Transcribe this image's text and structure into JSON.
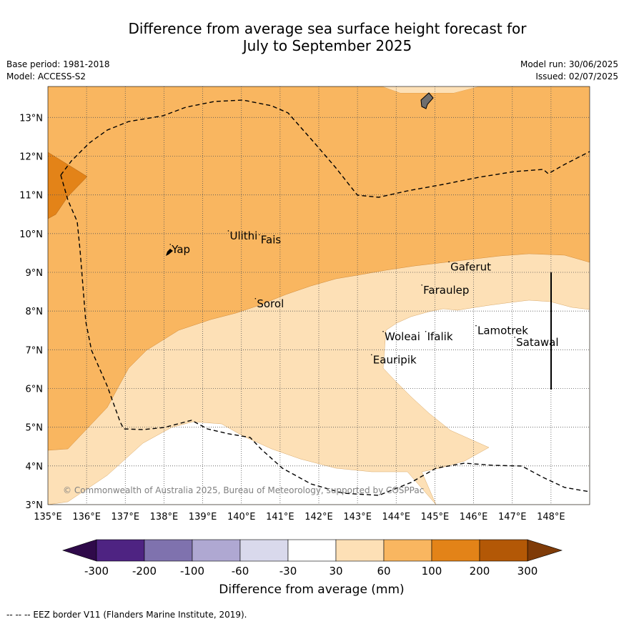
{
  "title": {
    "line1": "Difference from average sea surface height forecast for",
    "line2": "July to September 2025"
  },
  "meta_left": {
    "base_period": "Base period: 1981-2018",
    "model": "Model: ACCESS-S2"
  },
  "meta_right": {
    "model_run": "Model run: 30/06/2025",
    "issued": "Issued: 02/07/2025"
  },
  "map": {
    "lon_range": [
      135,
      149
    ],
    "lat_range": [
      3,
      13.8
    ],
    "lon_ticks": [
      "135°E",
      "136°E",
      "137°E",
      "138°E",
      "139°E",
      "140°E",
      "141°E",
      "142°E",
      "143°E",
      "144°E",
      "145°E",
      "146°E",
      "147°E",
      "148°E"
    ],
    "lat_ticks": [
      "3°N",
      "4°N",
      "5°N",
      "6°N",
      "7°N",
      "8°N",
      "9°N",
      "10°N",
      "11°N",
      "12°N",
      "13°N"
    ],
    "copyright": "© Commonwealth of Australia 2025, Bureau of Meteorology, supported by COSPPac",
    "places": [
      {
        "name": "Yap",
        "lon": 138.2,
        "lat": 9.5
      },
      {
        "name": "Ulithi",
        "lon": 139.7,
        "lat": 9.85
      },
      {
        "name": "Fais",
        "lon": 140.5,
        "lat": 9.75
      },
      {
        "name": "Gaferut",
        "lon": 145.4,
        "lat": 9.05
      },
      {
        "name": "Faraulep",
        "lon": 144.7,
        "lat": 8.45
      },
      {
        "name": "Sorol",
        "lon": 140.4,
        "lat": 8.1
      },
      {
        "name": "Woleai",
        "lon": 143.7,
        "lat": 7.25
      },
      {
        "name": "Ifalik",
        "lon": 144.8,
        "lat": 7.25
      },
      {
        "name": "Lamotrek",
        "lon": 146.1,
        "lat": 7.4
      },
      {
        "name": "Satawal",
        "lon": 147.1,
        "lat": 7.1
      },
      {
        "name": "Eauripik",
        "lon": 143.4,
        "lat": 6.65
      }
    ]
  },
  "colorbar": {
    "label": "Difference from average (mm)",
    "ticks": [
      "-300",
      "-200",
      "-100",
      "-60",
      "-30",
      "30",
      "60",
      "100",
      "200",
      "300"
    ],
    "colors": {
      "under": "#2f0a4a",
      "bins": [
        "#4e2382",
        "#7f72ae",
        "#afa8d2",
        "#d9d9ec",
        "#ffffff",
        "#fde0b6",
        "#f9b660",
        "#e38318",
        "#b35806"
      ],
      "over": "#7f3b08"
    }
  },
  "footer": "--  --  -- EEZ border V11 (Flanders Marine Institute, 2019)."
}
